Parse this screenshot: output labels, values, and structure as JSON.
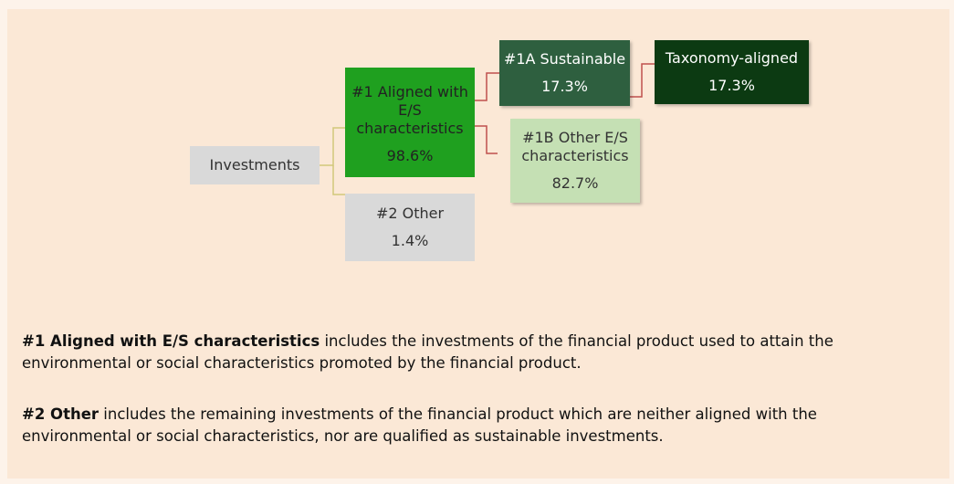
{
  "nodes": [
    {
      "label": "Investments"
    },
    {
      "label": "#1 Aligned with E/S characteristics",
      "value": "98.6%"
    },
    {
      "label": "#2 Other",
      "value": "1.4%"
    },
    {
      "label": "#1A Sustainable",
      "value": "17.3%"
    },
    {
      "label": "Taxonomy-aligned",
      "value": "17.3%"
    },
    {
      "label": "#1B Other E/S characteristics",
      "value": "82.7%"
    }
  ],
  "notes": [
    {
      "bold": "#1 Aligned with E/S characteristics",
      "text": "includes the investments of the financial product used to attain the environmental or social characteristics promoted by the financial product."
    },
    {
      "bold": "#2 Other",
      "text": "includes the remaining investments of the financial product which are neither aligned with the environmental or social characteristics, nor are qualified as sustainable investments."
    }
  ]
}
